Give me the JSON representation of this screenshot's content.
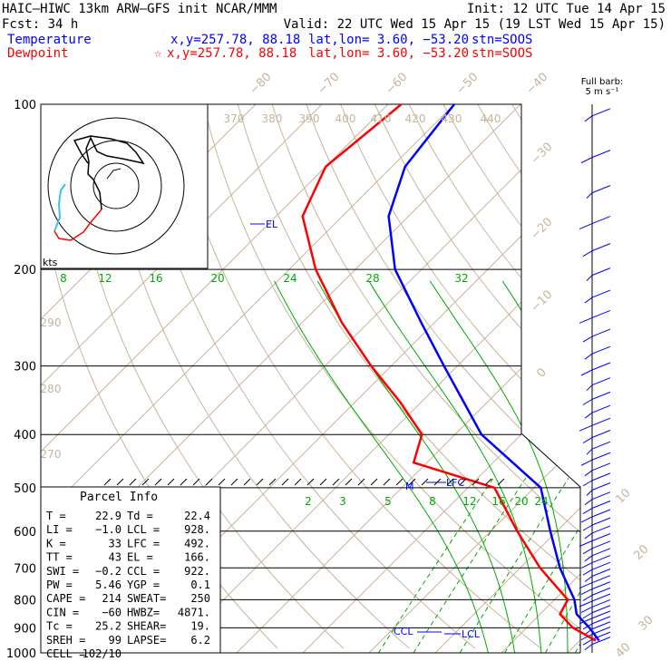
{
  "header": {
    "model_line": "HAIC–HIWC 13km ARW–GFS init   NCAR/MMM",
    "init_line": "Init: 12 UTC Tue 14 Apr 15",
    "fcst_line": "Fcst:   34 h",
    "valid_line": "Valid: 22 UTC Wed 15 Apr 15 (19 LST Wed 15 Apr 15)",
    "temp_label": "Temperature",
    "temp_xy": "x,y=257.78, 88.18",
    "temp_latlon": "lat,lon=  3.60, −53.20",
    "temp_stn": "stn=SOOS",
    "dew_label": "Dewpoint",
    "dew_marker": "☆",
    "dew_xy": "x,y=257.78, 88.18",
    "dew_latlon": "lat,lon=  3.60, −53.20",
    "dew_stn": "stn=SOOS"
  },
  "barb_legend": {
    "line1": "Full barb:",
    "line2": "5 m s⁻¹"
  },
  "colors": {
    "temperature": "#0000ff",
    "dewpoint": "#ff0000",
    "isotherm": "#c8b49a",
    "dry_adiabat": "#c8b49a",
    "moist_adiabat": "#00aa00",
    "isobar": "#000000",
    "hodo_low": "#40c0e0",
    "hodo_mid": "#ff0000"
  },
  "parcel_info": {
    "title": "Parcel Info",
    "rows": [
      [
        "T  =",
        "22.9",
        "Td =",
        "22.4"
      ],
      [
        "LI =",
        "−1.0",
        "LCL =",
        "928."
      ],
      [
        "K  =",
        "33",
        "LFC =",
        "492."
      ],
      [
        "TT =",
        "43",
        "EL  =",
        "166."
      ],
      [
        "SWI =",
        "−0.2",
        "CCL =",
        "922."
      ],
      [
        "PW =",
        "5.46",
        "YGP =",
        "0.1"
      ],
      [
        "CAPE =",
        "214",
        "SWEAT=",
        "250"
      ],
      [
        "CIN =",
        "−60",
        "HWBZ=",
        "4871."
      ],
      [
        "Tc =",
        "25.2",
        "SHEAR=",
        "19."
      ],
      [
        "SREH =",
        "99",
        "LAPSE=",
        "6.2"
      ],
      [
        "CELL =",
        "102/10",
        "",
        ""
      ]
    ]
  },
  "chart_data": {
    "type": "line",
    "title": "",
    "pressure_levels": [
      100,
      200,
      300,
      400,
      500,
      600,
      700,
      800,
      900,
      1000
    ],
    "pressure_tick_labels": [
      "100",
      "200",
      "300",
      "400",
      "500",
      "600",
      "700",
      "800",
      "900",
      "1000"
    ],
    "isotherm_labels": [
      "−80",
      "−70",
      "−60",
      "−50",
      "−40",
      "−30",
      "−20",
      "−10",
      "0",
      "10",
      "20",
      "30",
      "40"
    ],
    "theta_labels": [
      "370",
      "380",
      "390",
      "400",
      "410",
      "420",
      "430",
      "440",
      "290",
      "280",
      "270"
    ],
    "mixing_ratio_labels_upper": [
      "8",
      "12",
      "16",
      "20",
      "24",
      "28",
      "32"
    ],
    "mixing_ratio_labels_lower": [
      "2",
      "3",
      "5",
      "8",
      "12",
      "16",
      "20",
      "24"
    ],
    "markers": {
      "el": "EL",
      "lfc": "LFC",
      "m": "M",
      "ccl": "CCL",
      "lcl": "LCL"
    },
    "series": [
      {
        "name": "Temperature",
        "points": [
          [
            100,
            -80
          ],
          [
            130,
            -78
          ],
          [
            160,
            -73
          ],
          [
            200,
            -64
          ],
          [
            250,
            -52
          ],
          [
            300,
            -42
          ],
          [
            400,
            -26
          ],
          [
            500,
            -9
          ],
          [
            600,
            -1
          ],
          [
            700,
            6
          ],
          [
            800,
            13
          ],
          [
            850,
            15.5
          ],
          [
            900,
            19.5
          ],
          [
            950,
            22.9
          ]
        ]
      },
      {
        "name": "Dewpoint",
        "points": [
          [
            100,
            -88
          ],
          [
            130,
            -90
          ],
          [
            160,
            -86
          ],
          [
            200,
            -76
          ],
          [
            250,
            -64
          ],
          [
            300,
            -53
          ],
          [
            350,
            -43
          ],
          [
            400,
            -35
          ],
          [
            450,
            -32
          ],
          [
            500,
            -16
          ],
          [
            600,
            -6
          ],
          [
            700,
            3
          ],
          [
            800,
            12
          ],
          [
            850,
            13
          ],
          [
            900,
            17
          ],
          [
            950,
            22.4
          ]
        ]
      }
    ],
    "hodograph": {
      "rings": 3,
      "axis_label": "kts"
    },
    "wind_barbs": [
      [
        105,
        8
      ],
      [
        125,
        12
      ],
      [
        145,
        6
      ],
      [
        165,
        14
      ],
      [
        185,
        10
      ],
      [
        205,
        6
      ],
      [
        225,
        8
      ],
      [
        245,
        14
      ],
      [
        265,
        10
      ],
      [
        285,
        8
      ],
      [
        305,
        12
      ],
      [
        325,
        6
      ],
      [
        345,
        10
      ],
      [
        365,
        8
      ],
      [
        385,
        14
      ],
      [
        405,
        10
      ],
      [
        425,
        6
      ],
      [
        445,
        12
      ],
      [
        465,
        8
      ],
      [
        485,
        10
      ],
      [
        505,
        6
      ],
      [
        525,
        8
      ],
      [
        545,
        10
      ],
      [
        565,
        12
      ],
      [
        585,
        10
      ],
      [
        605,
        8
      ],
      [
        625,
        14
      ],
      [
        645,
        10
      ],
      [
        665,
        8
      ],
      [
        685,
        12
      ],
      [
        705,
        10
      ],
      [
        725,
        8
      ],
      [
        745,
        14
      ],
      [
        765,
        12
      ],
      [
        785,
        10
      ],
      [
        805,
        14
      ],
      [
        825,
        12
      ],
      [
        845,
        10
      ],
      [
        865,
        14
      ],
      [
        885,
        10
      ],
      [
        905,
        8
      ],
      [
        925,
        12
      ],
      [
        945,
        10
      ],
      [
        965,
        8
      ]
    ]
  }
}
